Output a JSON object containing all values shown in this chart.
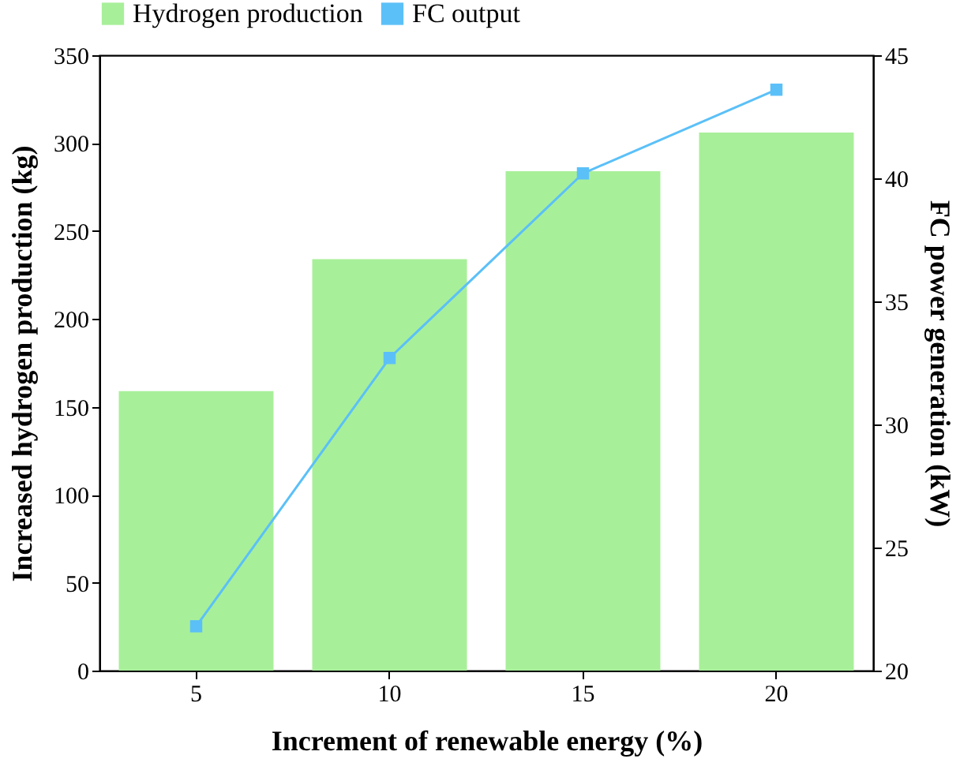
{
  "chart_data": {
    "type": "bar",
    "xlabel": "Increment of renewable energy (%)",
    "ylabel": "Increased hydrogen production (kg)",
    "y2label": "FC power generation (kW)",
    "categories": [
      "5",
      "10",
      "15",
      "20"
    ],
    "series": [
      {
        "name": "Hydrogen production",
        "color": "#a8ef9a",
        "values": [
          159,
          234,
          284,
          306
        ]
      },
      {
        "name": "FC output",
        "type": "line",
        "axis": "y2",
        "color": "#5bc0f8",
        "values": [
          21.8,
          32.7,
          40.2,
          43.6
        ]
      }
    ],
    "ylim": [
      0,
      350
    ],
    "yticks": [
      0,
      50,
      100,
      150,
      200,
      250,
      300,
      350
    ],
    "y2lim": [
      20,
      45
    ],
    "y2ticks": [
      20,
      25,
      30,
      35,
      40,
      45
    ],
    "marker": "square",
    "legend": "top left"
  }
}
